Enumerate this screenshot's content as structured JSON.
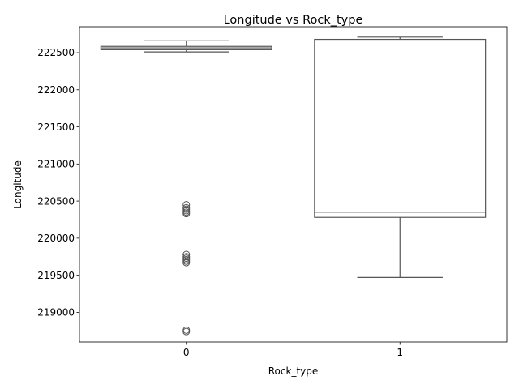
{
  "chart_data": {
    "type": "box",
    "title": "Longitude vs Rock_type",
    "xlabel": "Rock_type",
    "ylabel": "Longitude",
    "categories": [
      "0",
      "1"
    ],
    "ylim": [
      218600,
      222850
    ],
    "yticks": [
      219000,
      219500,
      220000,
      220500,
      221000,
      221500,
      222000,
      222500
    ],
    "ytick_labels": [
      "219000",
      "219500",
      "220000",
      "220500",
      "221000",
      "221500",
      "222000",
      "222500"
    ],
    "grid": false,
    "legend": "none",
    "boxes": [
      {
        "category": "0",
        "color": "#66c2a5",
        "whisker_low": 222510,
        "q1": 222540,
        "median": 222565,
        "q3": 222585,
        "whisker_high": 222660,
        "outliers": [
          220450,
          220410,
          220390,
          220370,
          220350,
          220330,
          219780,
          219750,
          219730,
          219710,
          219690,
          219670,
          218760,
          218740
        ]
      },
      {
        "category": "1",
        "color": "#e99675",
        "whisker_low": 219470,
        "q1": 220280,
        "median": 220350,
        "q3": 222680,
        "whisker_high": 222710,
        "outliers": []
      }
    ]
  }
}
